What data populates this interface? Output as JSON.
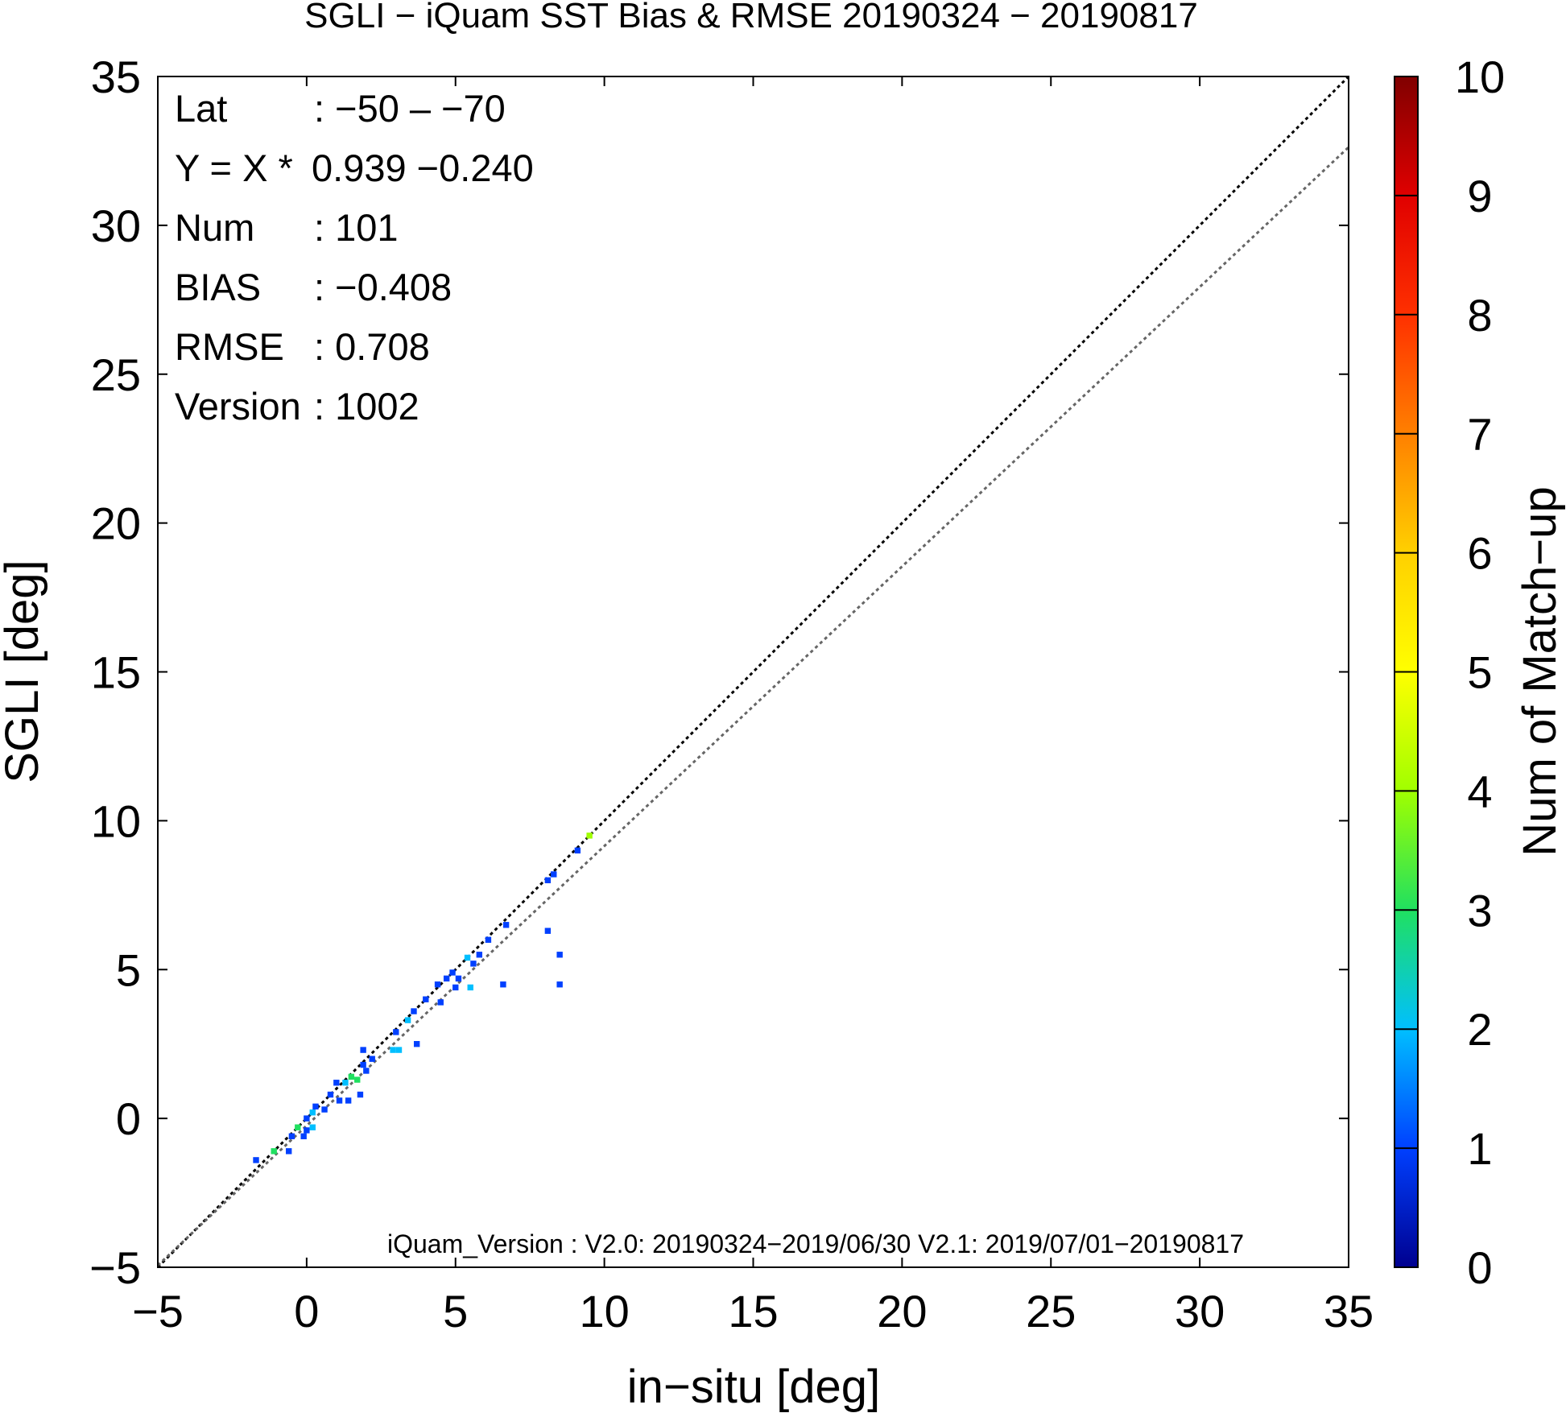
{
  "chart_data": {
    "type": "scatter",
    "title": "SGLI − iQuam  SST Bias & RMSE 20190324 − 20190817",
    "xlabel": "in−situ [deg]",
    "ylabel": "SGLI [deg]",
    "xlim": [
      -5,
      35
    ],
    "ylim": [
      -5,
      35
    ],
    "x_ticks": [
      -5,
      0,
      5,
      10,
      15,
      20,
      25,
      30,
      35
    ],
    "y_ticks": [
      -5,
      0,
      5,
      10,
      15,
      20,
      25,
      30,
      35
    ],
    "x_tick_labels": [
      "−5",
      "0",
      "5",
      "10",
      "15",
      "20",
      "25",
      "30",
      "35"
    ],
    "y_tick_labels": [
      "−5",
      "0",
      "5",
      "10",
      "15",
      "20",
      "25",
      "30",
      "35"
    ],
    "grid": false,
    "stats": [
      {
        "key": "Lat",
        "value": ": −50 – −70"
      },
      {
        "key": "Y = X *",
        "value": "0.939 −0.240"
      },
      {
        "key": "Num",
        "value": ": 101"
      },
      {
        "key": "BIAS",
        "value": ": −0.408"
      },
      {
        "key": "RMSE",
        "value": ": 0.708"
      },
      {
        "key": "Version",
        "value": ": 1002"
      }
    ],
    "footnote": "iQuam_Version : V2.0: 20190324−2019/06/30 V2.1: 2019/07/01−20190817",
    "reference_lines": [
      {
        "kind": "one-to-one",
        "slope": 1.0,
        "intercept": 0.0,
        "color": "#000000",
        "style": "dotted"
      },
      {
        "kind": "regression",
        "slope": 0.939,
        "intercept": -0.24,
        "color": "#666666",
        "style": "dotted"
      }
    ],
    "colorbar": {
      "label": "Num of Match−up",
      "range": [
        0,
        10
      ],
      "ticks": [
        "0",
        "1",
        "2",
        "3",
        "4",
        "5",
        "6",
        "7",
        "8",
        "9",
        "10"
      ],
      "colors": [
        "#00008f",
        "#0040ff",
        "#00bfff",
        "#20e060",
        "#a0ff00",
        "#ffff00",
        "#ffd000",
        "#ff8000",
        "#ff3000",
        "#e00000",
        "#800000"
      ]
    },
    "points": [
      {
        "x": -1.7,
        "y": -1.4,
        "count": 1
      },
      {
        "x": -1.1,
        "y": -1.1,
        "count": 3
      },
      {
        "x": -0.6,
        "y": -1.1,
        "count": 1
      },
      {
        "x": -0.5,
        "y": -0.6,
        "count": 1
      },
      {
        "x": -0.3,
        "y": -0.3,
        "count": 3
      },
      {
        "x": -0.1,
        "y": -0.6,
        "count": 1
      },
      {
        "x": 0.0,
        "y": -0.4,
        "count": 1
      },
      {
        "x": 0.2,
        "y": -0.3,
        "count": 2
      },
      {
        "x": 0.0,
        "y": 0.0,
        "count": 1
      },
      {
        "x": 0.2,
        "y": 0.2,
        "count": 2
      },
      {
        "x": 0.3,
        "y": 0.4,
        "count": 1
      },
      {
        "x": 0.6,
        "y": 0.3,
        "count": 1
      },
      {
        "x": 0.8,
        "y": 0.8,
        "count": 1
      },
      {
        "x": 1.0,
        "y": 1.2,
        "count": 1
      },
      {
        "x": 1.1,
        "y": 0.6,
        "count": 1
      },
      {
        "x": 1.4,
        "y": 0.6,
        "count": 1
      },
      {
        "x": 1.3,
        "y": 1.2,
        "count": 2
      },
      {
        "x": 1.5,
        "y": 1.4,
        "count": 3
      },
      {
        "x": 1.7,
        "y": 1.3,
        "count": 3
      },
      {
        "x": 1.8,
        "y": 0.8,
        "count": 1
      },
      {
        "x": 1.9,
        "y": 1.8,
        "count": 1
      },
      {
        "x": 1.9,
        "y": 2.3,
        "count": 1
      },
      {
        "x": 2.2,
        "y": 2.0,
        "count": 1
      },
      {
        "x": 2.0,
        "y": 1.6,
        "count": 1
      },
      {
        "x": 2.9,
        "y": 2.3,
        "count": 2
      },
      {
        "x": 3.1,
        "y": 2.3,
        "count": 2
      },
      {
        "x": 3.0,
        "y": 2.9,
        "count": 1
      },
      {
        "x": 3.4,
        "y": 3.3,
        "count": 2
      },
      {
        "x": 3.6,
        "y": 3.6,
        "count": 1
      },
      {
        "x": 3.7,
        "y": 2.5,
        "count": 1
      },
      {
        "x": 4.0,
        "y": 4.0,
        "count": 1
      },
      {
        "x": 4.4,
        "y": 4.5,
        "count": 1
      },
      {
        "x": 4.5,
        "y": 3.9,
        "count": 1
      },
      {
        "x": 4.7,
        "y": 4.7,
        "count": 1
      },
      {
        "x": 4.9,
        "y": 4.9,
        "count": 1
      },
      {
        "x": 5.0,
        "y": 4.4,
        "count": 1
      },
      {
        "x": 5.1,
        "y": 4.7,
        "count": 1
      },
      {
        "x": 5.5,
        "y": 4.4,
        "count": 2
      },
      {
        "x": 5.6,
        "y": 5.2,
        "count": 1
      },
      {
        "x": 5.4,
        "y": 5.4,
        "count": 2
      },
      {
        "x": 5.8,
        "y": 5.5,
        "count": 1
      },
      {
        "x": 6.1,
        "y": 6.0,
        "count": 1
      },
      {
        "x": 6.6,
        "y": 4.5,
        "count": 1
      },
      {
        "x": 6.7,
        "y": 6.5,
        "count": 1
      },
      {
        "x": 8.1,
        "y": 6.3,
        "count": 1
      },
      {
        "x": 8.1,
        "y": 8.0,
        "count": 1
      },
      {
        "x": 8.3,
        "y": 8.2,
        "count": 1
      },
      {
        "x": 8.5,
        "y": 5.5,
        "count": 1
      },
      {
        "x": 8.5,
        "y": 4.5,
        "count": 1
      },
      {
        "x": 9.1,
        "y": 9.0,
        "count": 1
      },
      {
        "x": 9.5,
        "y": 9.5,
        "count": 4
      }
    ]
  }
}
